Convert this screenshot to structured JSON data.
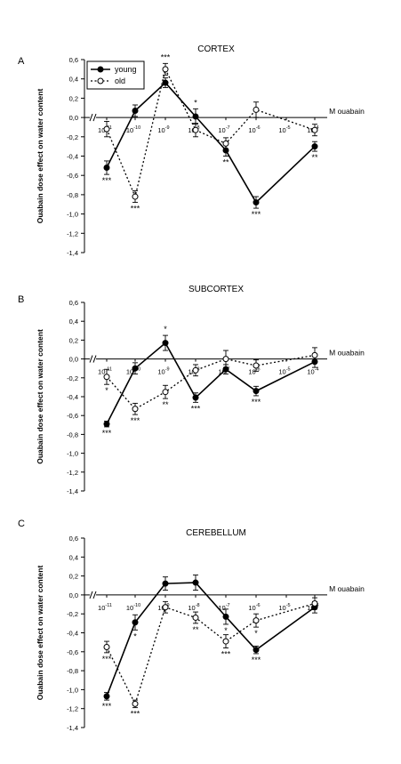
{
  "figure": {
    "ylabel": "Ouabain dose effect on water content",
    "xunit": "M ouabain"
  },
  "legend": [
    {
      "name": "young",
      "style": "solid",
      "marker": "filled"
    },
    {
      "name": "old",
      "style": "dotted",
      "marker": "open"
    }
  ],
  "chart_data": [
    {
      "panel": "A",
      "title": "CORTEX",
      "type": "line",
      "ylim": [
        -1.4,
        0.6
      ],
      "yticks": [
        "0,6",
        "0,4",
        "0,2",
        "0,0",
        "-0,2",
        "-0,4",
        "-0,6",
        "-0,8",
        "-1,0",
        "-1,2",
        "-1,4"
      ],
      "xticks": [
        {
          "b": "10",
          "e": "-11"
        },
        {
          "b": "10",
          "e": "-10"
        },
        {
          "b": "10",
          "e": "-9"
        },
        {
          "b": "10",
          "e": "-8"
        },
        {
          "b": "10",
          "e": "-7"
        },
        {
          "b": "10",
          "e": "-6"
        },
        {
          "b": "10",
          "e": "-5"
        },
        {
          "b": "10",
          "e": "-4"
        }
      ],
      "series": [
        {
          "name": "young",
          "x": [
            -11,
            -10,
            -9,
            -8,
            -7,
            -6,
            -4
          ],
          "values": [
            -0.52,
            0.07,
            0.36,
            0.01,
            -0.34,
            -0.88,
            -0.3
          ],
          "errors": [
            0.07,
            0.06,
            0.05,
            0.08,
            0.06,
            0.06,
            0.05
          ],
          "stars": [
            "***",
            "",
            "**",
            "*",
            "**",
            "***",
            "**"
          ]
        },
        {
          "name": "old",
          "x": [
            -11,
            -10,
            -9,
            -8,
            -7,
            -6,
            -4
          ],
          "values": [
            -0.12,
            -0.82,
            0.5,
            -0.13,
            -0.27,
            0.08,
            -0.13
          ],
          "errors": [
            0.08,
            0.06,
            0.06,
            0.07,
            0.06,
            0.08,
            0.06
          ],
          "stars": [
            "",
            "***",
            "***",
            "",
            "",
            "",
            ""
          ]
        }
      ]
    },
    {
      "panel": "B",
      "title": "SUBCORTEX",
      "type": "line",
      "ylim": [
        -1.4,
        0.6
      ],
      "yticks": [
        "0,6",
        "0,4",
        "0,2",
        "0,0",
        "-0,2",
        "-0,4",
        "-0,6",
        "-0,8",
        "-1,0",
        "-1,2",
        "-1,4"
      ],
      "xticks": [
        {
          "b": "10",
          "e": "-11"
        },
        {
          "b": "10",
          "e": "-10"
        },
        {
          "b": "10",
          "e": "-9"
        },
        {
          "b": "10",
          "e": "-8"
        },
        {
          "b": "10",
          "e": "-7"
        },
        {
          "b": "10",
          "e": "-6"
        },
        {
          "b": "10",
          "e": "-5"
        },
        {
          "b": "10",
          "e": "-4"
        }
      ],
      "series": [
        {
          "name": "young",
          "x": [
            -11,
            -10,
            -9,
            -8,
            -7,
            -6,
            -4
          ],
          "values": [
            -0.69,
            -0.1,
            0.17,
            -0.41,
            -0.11,
            -0.34,
            -0.03
          ],
          "errors": [
            0.03,
            0.06,
            0.08,
            0.05,
            0.05,
            0.05,
            0.06
          ],
          "stars": [
            "***",
            "",
            "*",
            "***",
            "",
            "***",
            ""
          ]
        },
        {
          "name": "old",
          "x": [
            -11,
            -10,
            -9,
            -8,
            -7,
            -6,
            -4
          ],
          "values": [
            -0.19,
            -0.53,
            -0.35,
            -0.12,
            0.0,
            -0.07,
            0.04
          ],
          "errors": [
            0.08,
            0.06,
            0.07,
            0.06,
            0.09,
            0.06,
            0.08
          ],
          "stars": [
            "*",
            "***",
            "**",
            "",
            "",
            "",
            ""
          ]
        }
      ]
    },
    {
      "panel": "C",
      "title": "CEREBELLUM",
      "type": "line",
      "ylim": [
        -1.4,
        0.6
      ],
      "yticks": [
        "0,6",
        "0,4",
        "0,2",
        "0,0",
        "-0,2",
        "-0,4",
        "-0,6",
        "-0,8",
        "-1,0",
        "-1,2",
        "-1,4"
      ],
      "xticks": [
        {
          "b": "10",
          "e": "-11"
        },
        {
          "b": "10",
          "e": "-10"
        },
        {
          "b": "10",
          "e": "-9"
        },
        {
          "b": "10",
          "e": "-8"
        },
        {
          "b": "10",
          "e": "-7"
        },
        {
          "b": "10",
          "e": "-6"
        },
        {
          "b": "10",
          "e": "-5"
        },
        {
          "b": "10",
          "e": "-4"
        }
      ],
      "series": [
        {
          "name": "young",
          "x": [
            -11,
            -10,
            -9,
            -8,
            -7,
            -6,
            -4
          ],
          "values": [
            -1.07,
            -0.29,
            0.12,
            0.13,
            -0.23,
            -0.58,
            -0.13
          ],
          "errors": [
            0.04,
            0.08,
            0.07,
            0.08,
            0.08,
            0.04,
            0.06
          ],
          "stars": [
            "***",
            "*",
            "",
            "",
            "*",
            "***",
            ""
          ]
        },
        {
          "name": "old",
          "x": [
            -11,
            -10,
            -9,
            -8,
            -7,
            -6,
            -4
          ],
          "values": [
            -0.55,
            -1.15,
            -0.13,
            -0.24,
            -0.49,
            -0.27,
            -0.09
          ],
          "errors": [
            0.06,
            0.04,
            0.06,
            0.06,
            0.07,
            0.07,
            0.06
          ],
          "stars": [
            "***",
            "***",
            "",
            "**",
            "***",
            "*",
            ""
          ]
        }
      ]
    }
  ]
}
